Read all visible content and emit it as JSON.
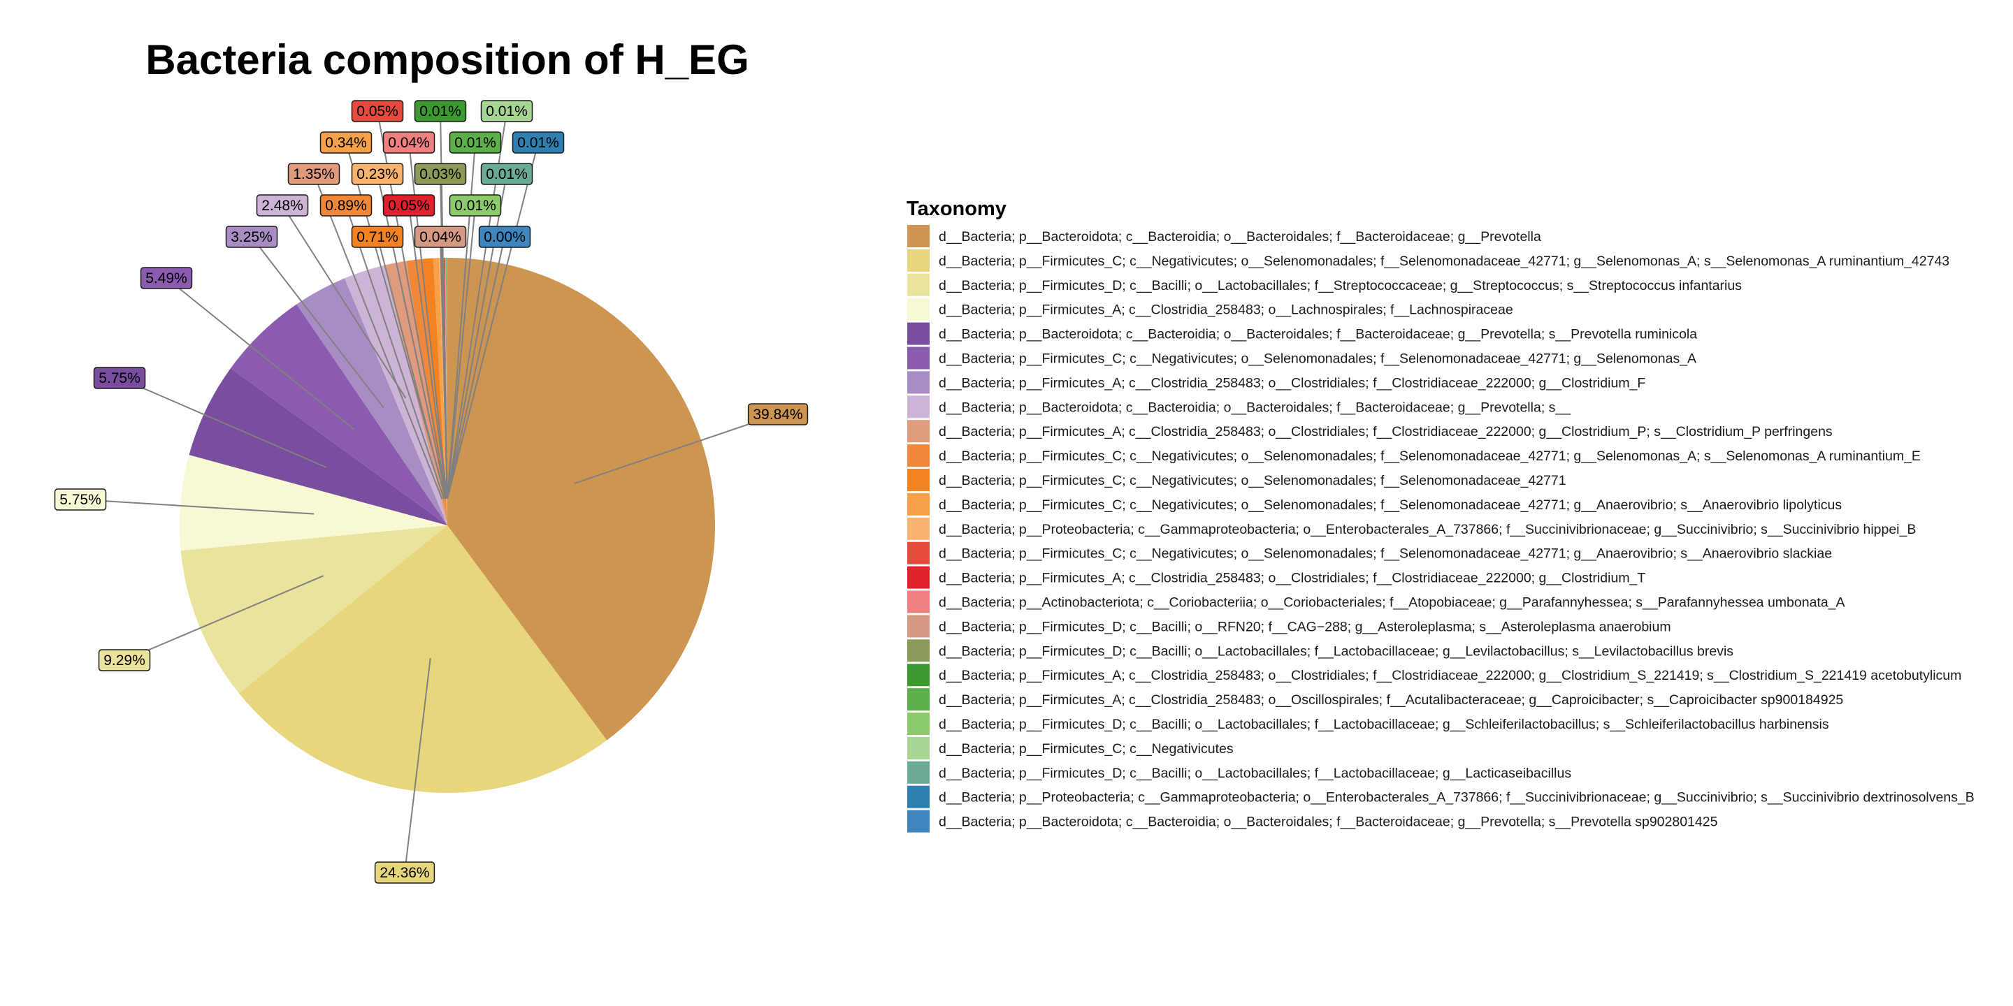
{
  "chart_data": {
    "type": "pie",
    "title": "Bacteria composition of H_EG",
    "legend_title": "Taxonomy",
    "legend_position": "right",
    "slices": [
      {
        "label": "d__Bacteria; p__Bacteroidota; c__Bacteroidia; o__Bacteroidales; f__Bacteroidaceae; g__Prevotella",
        "value": 39.84,
        "value_label": "39.84%",
        "color": "#CC9552"
      },
      {
        "label": "d__Bacteria; p__Firmicutes_C; c__Negativicutes; o__Selenomonadales; f__Selenomonadaceae_42771; g__Selenomonas_A; s__Selenomonas_A ruminantium_42743",
        "value": 24.36,
        "value_label": "24.36%",
        "color": "#E8D67C"
      },
      {
        "label": "d__Bacteria; p__Firmicutes_D; c__Bacilli; o__Lactobacillales; f__Streptococcaceae; g__Streptococcus; s__Streptococcus infantarius",
        "value": 9.29,
        "value_label": "9.29%",
        "color": "#EAE39E"
      },
      {
        "label": "d__Bacteria; p__Firmicutes_A; c__Clostridia_258483; o__Lachnospirales; f__Lachnospiraceae",
        "value": 5.75,
        "value_label": "5.75%",
        "color": "#F8F8D4"
      },
      {
        "label": "d__Bacteria; p__Bacteroidota; c__Bacteroidia; o__Bacteroidales; f__Bacteroidaceae; g__Prevotella; s__Prevotella ruminicola",
        "value": 5.75,
        "value_label": "5.75%",
        "color": "#7A4E9E"
      },
      {
        "label": "d__Bacteria; p__Firmicutes_C; c__Negativicutes; o__Selenomonadales; f__Selenomonadaceae_42771; g__Selenomonas_A",
        "value": 5.49,
        "value_label": "5.49%",
        "color": "#8B5BB0"
      },
      {
        "label": "d__Bacteria; p__Firmicutes_A; c__Clostridia_258483; o__Clostridiales; f__Clostridiaceae_222000; g__Clostridium_F",
        "value": 3.25,
        "value_label": "3.25%",
        "color": "#A88DC4"
      },
      {
        "label": "d__Bacteria; p__Bacteroidota; c__Bacteroidia; o__Bacteroidales; f__Bacteroidaceae; g__Prevotella; s__",
        "value": 2.48,
        "value_label": "2.48%",
        "color": "#CBB4D6"
      },
      {
        "label": "d__Bacteria; p__Firmicutes_A; c__Clostridia_258483; o__Clostridiales; f__Clostridiaceae_222000; g__Clostridium_P; s__Clostridium_P perfringens",
        "value": 1.35,
        "value_label": "1.35%",
        "color": "#E09A7E"
      },
      {
        "label": "d__Bacteria; p__Firmicutes_C; c__Negativicutes; o__Selenomonadales; f__Selenomonadaceae_42771; g__Selenomonas_A; s__Selenomonas_A ruminantium_E",
        "value": 0.89,
        "value_label": "0.89%",
        "color": "#F0883A"
      },
      {
        "label": "d__Bacteria; p__Firmicutes_C; c__Negativicutes; o__Selenomonadales; f__Selenomonadaceae_42771",
        "value": 0.71,
        "value_label": "0.71%",
        "color": "#F58220"
      },
      {
        "label": "d__Bacteria; p__Firmicutes_C; c__Negativicutes; o__Selenomonadales; f__Selenomonadaceae_42771; g__Anaerovibrio; s__Anaerovibrio lipolyticus",
        "value": 0.34,
        "value_label": "0.34%",
        "color": "#F6A04A"
      },
      {
        "label": "d__Bacteria; p__Proteobacteria; c__Gammaproteobacteria; o__Enterobacterales_A_737866; f__Succinivibrionaceae; g__Succinivibrio; s__Succinivibrio hippei_B",
        "value": 0.23,
        "value_label": "0.23%",
        "color": "#F8B46E"
      },
      {
        "label": "d__Bacteria; p__Firmicutes_C; c__Negativicutes; o__Selenomonadales; f__Selenomonadaceae_42771; g__Anaerovibrio; s__Anaerovibrio slackiae",
        "value": 0.05,
        "value_label": "0.05%",
        "color": "#E64A3C"
      },
      {
        "label": "d__Bacteria; p__Firmicutes_A; c__Clostridia_258483; o__Clostridiales; f__Clostridiaceae_222000; g__Clostridium_T",
        "value": 0.05,
        "value_label": "0.05%",
        "color": "#E0202C"
      },
      {
        "label": "d__Bacteria; p__Actinobacteriota; c__Coriobacteriia; o__Coriobacteriales; f__Atopobiaceae; g__Parafannyhessea; s__Parafannyhessea umbonata_A",
        "value": 0.04,
        "value_label": "0.04%",
        "color": "#F08080"
      },
      {
        "label": "d__Bacteria; p__Firmicutes_D; c__Bacilli; o__RFN20; f__CAG−288; g__Asteroleplasma; s__Asteroleplasma anaerobium",
        "value": 0.04,
        "value_label": "0.04%",
        "color": "#D49A84"
      },
      {
        "label": "d__Bacteria; p__Firmicutes_D; c__Bacilli; o__Lactobacillales; f__Lactobacillaceae; g__Levilactobacillus; s__Levilactobacillus brevis",
        "value": 0.03,
        "value_label": "0.03%",
        "color": "#8A9A5B"
      },
      {
        "label": "d__Bacteria; p__Firmicutes_A; c__Clostridia_258483; o__Clostridiales; f__Clostridiaceae_222000; g__Clostridium_S_221419; s__Clostridium_S_221419 acetobutylicum",
        "value": 0.01,
        "value_label": "0.01%",
        "color": "#3A9A30"
      },
      {
        "label": "d__Bacteria; p__Firmicutes_A; c__Clostridia_258483; o__Oscillospirales; f__Acutalibacteraceae; g__Caproicibacter; s__Caproicibacter sp900184925",
        "value": 0.01,
        "value_label": "0.01%",
        "color": "#5CB04A"
      },
      {
        "label": "d__Bacteria; p__Firmicutes_D; c__Bacilli; o__Lactobacillales; f__Lactobacillaceae; g__Schleiferilactobacillus; s__Schleiferilactobacillus harbinensis",
        "value": 0.01,
        "value_label": "0.01%",
        "color": "#8CCB6C"
      },
      {
        "label": "d__Bacteria; p__Firmicutes_C; c__Negativicutes",
        "value": 0.01,
        "value_label": "0.01%",
        "color": "#A6D594"
      },
      {
        "label": "d__Bacteria; p__Firmicutes_D; c__Bacilli; o__Lactobacillales; f__Lactobacillaceae; g__Lacticaseibacillus",
        "value": 0.01,
        "value_label": "0.01%",
        "color": "#6AAA96"
      },
      {
        "label": "d__Bacteria; p__Proteobacteria; c__Gammaproteobacteria; o__Enterobacterales_A_737866; f__Succinivibrionaceae; g__Succinivibrio; s__Succinivibrio dextrinosolvens_B",
        "value": 0.01,
        "value_label": "0.01%",
        "color": "#2E80B0"
      },
      {
        "label": "d__Bacteria; p__Bacteroidota; c__Bacteroidia; o__Bacteroidales; f__Bacteroidaceae; g__Prevotella; s__Prevotella sp902801425",
        "value": 0.0,
        "value_label": "0.00%",
        "color": "#3D86C0"
      }
    ]
  }
}
